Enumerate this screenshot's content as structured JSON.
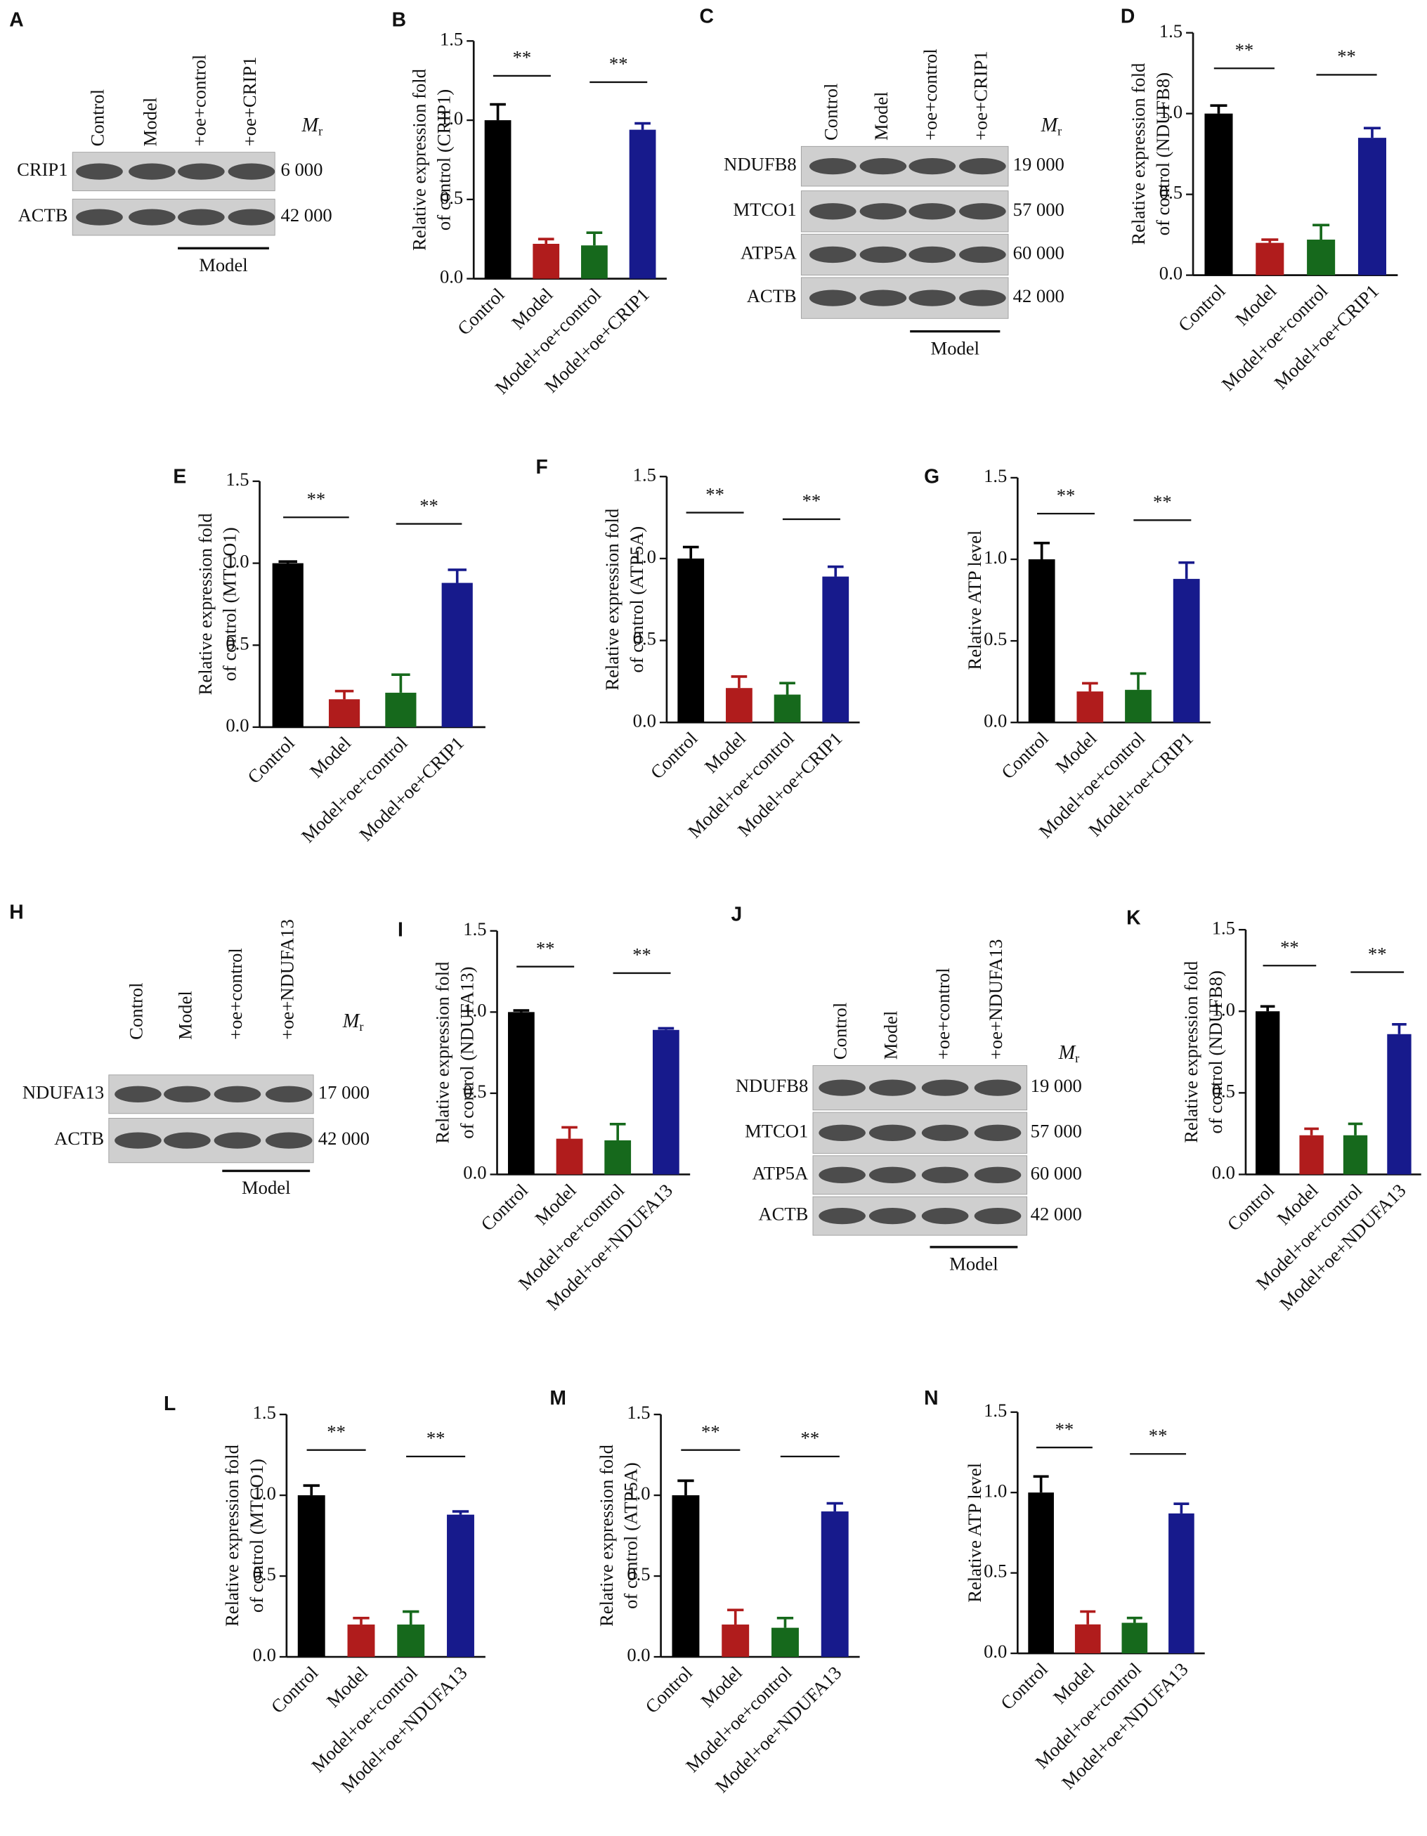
{
  "chart_data": [
    {
      "type": "bar",
      "label": "B",
      "y_label": [
        "Relative expression fold",
        "of control (CRIP1)"
      ],
      "categories": [
        "Control",
        "Model",
        "Model+oe+control",
        "Model+oe+CRIP1"
      ],
      "values": [
        1.0,
        0.22,
        0.21,
        0.94
      ],
      "errors": [
        0.1,
        0.03,
        0.08,
        0.04
      ],
      "colors": [
        "#000000",
        "#b01c1c",
        "#16691c",
        "#171a8c"
      ],
      "ylim": [
        0,
        1.5
      ],
      "yticks": [
        {
          "value": 0,
          "label": "0.0"
        },
        {
          "value": 0.5,
          "label": "0.5"
        },
        {
          "value": 1,
          "label": "1.0"
        },
        {
          "value": 1.5,
          "label": "1.5"
        }
      ],
      "annotations": [
        "**",
        "**"
      ]
    },
    {
      "type": "bar",
      "label": "D",
      "y_label": [
        "Relative expression fold",
        "of control (NDUFB8)"
      ],
      "categories": [
        "Control",
        "Model",
        "Model+oe+control",
        "Model+oe+CRIP1"
      ],
      "values": [
        1.0,
        0.2,
        0.22,
        0.85
      ],
      "errors": [
        0.05,
        0.02,
        0.09,
        0.06
      ],
      "colors": [
        "#000000",
        "#b01c1c",
        "#16691c",
        "#171a8c"
      ],
      "ylim": [
        0,
        1.5
      ],
      "yticks": [
        {
          "value": 0,
          "label": "0.0"
        },
        {
          "value": 0.5,
          "label": "0.5"
        },
        {
          "value": 1,
          "label": "1.0"
        },
        {
          "value": 1.5,
          "label": "1.5"
        }
      ],
      "annotations": [
        "**",
        "**"
      ]
    },
    {
      "type": "bar",
      "label": "E",
      "y_label": [
        "Relative expression fold",
        "of control (MTCO1)"
      ],
      "categories": [
        "Control",
        "Model",
        "Model+oe+control",
        "Model+oe+CRIP1"
      ],
      "values": [
        1.0,
        0.17,
        0.21,
        0.88
      ],
      "errors": [
        0.01,
        0.05,
        0.11,
        0.08
      ],
      "colors": [
        "#000000",
        "#b01c1c",
        "#16691c",
        "#171a8c"
      ],
      "ylim": [
        0,
        1.5
      ],
      "yticks": [
        {
          "value": 0,
          "label": "0.0"
        },
        {
          "value": 0.5,
          "label": "0.5"
        },
        {
          "value": 1,
          "label": "1.0"
        },
        {
          "value": 1.5,
          "label": "1.5"
        }
      ],
      "annotations": [
        "**",
        "**"
      ]
    },
    {
      "type": "bar",
      "label": "F",
      "y_label": [
        "Relative expression fold",
        "of control (ATP5A)"
      ],
      "categories": [
        "Control",
        "Model",
        "Model+oe+control",
        "Model+oe+CRIP1"
      ],
      "values": [
        1.0,
        0.21,
        0.17,
        0.89
      ],
      "errors": [
        0.07,
        0.07,
        0.07,
        0.06
      ],
      "colors": [
        "#000000",
        "#b01c1c",
        "#16691c",
        "#171a8c"
      ],
      "ylim": [
        0,
        1.5
      ],
      "yticks": [
        {
          "value": 0,
          "label": "0.0"
        },
        {
          "value": 0.5,
          "label": "0.5"
        },
        {
          "value": 1,
          "label": "1.0"
        },
        {
          "value": 1.5,
          "label": "1.5"
        }
      ],
      "annotations": [
        "**",
        "**"
      ]
    },
    {
      "type": "bar",
      "label": "G",
      "y_label": [
        "Relative ATP level"
      ],
      "categories": [
        "Control",
        "Model",
        "Model+oe+control",
        "Model+oe+CRIP1"
      ],
      "values": [
        1.0,
        0.19,
        0.2,
        0.88
      ],
      "errors": [
        0.1,
        0.05,
        0.1,
        0.1
      ],
      "colors": [
        "#000000",
        "#b01c1c",
        "#16691c",
        "#171a8c"
      ],
      "ylim": [
        0,
        1.5
      ],
      "yticks": [
        {
          "value": 0,
          "label": "0.0"
        },
        {
          "value": 0.5,
          "label": "0.5"
        },
        {
          "value": 1,
          "label": "1.0"
        },
        {
          "value": 1.5,
          "label": "1.5"
        }
      ],
      "annotations": [
        "**",
        "**"
      ]
    },
    {
      "type": "bar",
      "label": "I",
      "y_label": [
        "Relative expression fold",
        "of control (NDUFA13)"
      ],
      "categories": [
        "Control",
        "Model",
        "Model+oe+control",
        "Model+oe+NDUFA13"
      ],
      "values": [
        1.0,
        0.22,
        0.21,
        0.89
      ],
      "errors": [
        0.01,
        0.07,
        0.1,
        0.01
      ],
      "colors": [
        "#000000",
        "#b01c1c",
        "#16691c",
        "#171a8c"
      ],
      "ylim": [
        0,
        1.5
      ],
      "yticks": [
        {
          "value": 0,
          "label": "0.0"
        },
        {
          "value": 0.5,
          "label": "0.5"
        },
        {
          "value": 1,
          "label": "1.0"
        },
        {
          "value": 1.5,
          "label": "1.5"
        }
      ],
      "annotations": [
        "**",
        "**"
      ]
    },
    {
      "type": "bar",
      "label": "K",
      "y_label": [
        "Relative expression fold",
        "of control (NDUFB8)"
      ],
      "categories": [
        "Control",
        "Model",
        "Model+oe+control",
        "Model+oe+NDUFA13"
      ],
      "values": [
        1.0,
        0.24,
        0.24,
        0.86
      ],
      "errors": [
        0.03,
        0.04,
        0.07,
        0.06
      ],
      "colors": [
        "#000000",
        "#b01c1c",
        "#16691c",
        "#171a8c"
      ],
      "ylim": [
        0,
        1.5
      ],
      "yticks": [
        {
          "value": 0,
          "label": "0.0"
        },
        {
          "value": 0.5,
          "label": "0.5"
        },
        {
          "value": 1,
          "label": "1.0"
        },
        {
          "value": 1.5,
          "label": "1.5"
        }
      ],
      "annotations": [
        "**",
        "**"
      ]
    },
    {
      "type": "bar",
      "label": "L",
      "y_label": [
        "Relative expression fold",
        "of control (MTCO1)"
      ],
      "categories": [
        "Control",
        "Model",
        "Model+oe+control",
        "Model+oe+NDUFA13"
      ],
      "values": [
        1.0,
        0.2,
        0.2,
        0.88
      ],
      "errors": [
        0.06,
        0.04,
        0.08,
        0.02
      ],
      "colors": [
        "#000000",
        "#b01c1c",
        "#16691c",
        "#171a8c"
      ],
      "ylim": [
        0,
        1.5
      ],
      "yticks": [
        {
          "value": 0,
          "label": "0.0"
        },
        {
          "value": 0.5,
          "label": "0.5"
        },
        {
          "value": 1,
          "label": "1.0"
        },
        {
          "value": 1.5,
          "label": "1.5"
        }
      ],
      "annotations": [
        "**",
        "**"
      ]
    },
    {
      "type": "bar",
      "label": "M",
      "y_label": [
        "Relative expression fold",
        "of control (ATP5A)"
      ],
      "categories": [
        "Control",
        "Model",
        "Model+oe+control",
        "Model+oe+NDUFA13"
      ],
      "values": [
        1.0,
        0.2,
        0.18,
        0.9
      ],
      "errors": [
        0.09,
        0.09,
        0.06,
        0.05
      ],
      "colors": [
        "#000000",
        "#b01c1c",
        "#16691c",
        "#171a8c"
      ],
      "ylim": [
        0,
        1.5
      ],
      "yticks": [
        {
          "value": 0,
          "label": "0.0"
        },
        {
          "value": 0.5,
          "label": "0.5"
        },
        {
          "value": 1,
          "label": "1.0"
        },
        {
          "value": 1.5,
          "label": "1.5"
        }
      ],
      "annotations": [
        "**",
        "**"
      ]
    },
    {
      "type": "bar",
      "label": "N",
      "y_label": [
        "Relative ATP level"
      ],
      "categories": [
        "Control",
        "Model",
        "Model+oe+control",
        "Model+oe+NDUFA13"
      ],
      "values": [
        1.0,
        0.18,
        0.19,
        0.87
      ],
      "errors": [
        0.1,
        0.08,
        0.03,
        0.06
      ],
      "colors": [
        "#000000",
        "#b01c1c",
        "#16691c",
        "#171a8c"
      ],
      "ylim": [
        0,
        1.5
      ],
      "yticks": [
        {
          "value": 0,
          "label": "0.0"
        },
        {
          "value": 0.5,
          "label": "0.5"
        },
        {
          "value": 1,
          "label": "1.0"
        },
        {
          "value": 1.5,
          "label": "1.5"
        }
      ],
      "annotations": [
        "**",
        "**"
      ]
    }
  ],
  "blots": [
    {
      "label": "A",
      "lanes": [
        "Control",
        "Model",
        "+oe+control",
        "+oe+CRIP1"
      ],
      "mr": "M",
      "mr_sub": "r",
      "rows": [
        {
          "protein": "CRIP1",
          "weight": "6 000"
        },
        {
          "protein": "ACTB",
          "weight": "42 000"
        }
      ],
      "group": "Model"
    },
    {
      "label": "C",
      "lanes": [
        "Control",
        "Model",
        "+oe+control",
        "+oe+CRIP1"
      ],
      "mr": "M",
      "mr_sub": "r",
      "rows": [
        {
          "protein": "NDUFB8",
          "weight": "19 000"
        },
        {
          "protein": "MTCO1",
          "weight": "57 000"
        },
        {
          "protein": "ATP5A",
          "weight": "60 000"
        },
        {
          "protein": "ACTB",
          "weight": "42 000"
        }
      ],
      "group": "Model"
    },
    {
      "label": "H",
      "lanes": [
        "Control",
        "Model",
        "+oe+control",
        "+oe+NDUFA13"
      ],
      "mr": "M",
      "mr_sub": "r",
      "rows": [
        {
          "protein": "NDUFA13",
          "weight": "17 000"
        },
        {
          "protein": "ACTB",
          "weight": "42 000"
        }
      ],
      "group": "Model"
    },
    {
      "label": "J",
      "lanes": [
        "Control",
        "Model",
        "+oe+control",
        "+oe+NDUFA13"
      ],
      "mr": "M",
      "mr_sub": "r",
      "rows": [
        {
          "protein": "NDUFB8",
          "weight": "19 000"
        },
        {
          "protein": "MTCO1",
          "weight": "57 000"
        },
        {
          "protein": "ATP5A",
          "weight": "60 000"
        },
        {
          "protein": "ACTB",
          "weight": "42 000"
        }
      ],
      "group": "Model"
    }
  ]
}
